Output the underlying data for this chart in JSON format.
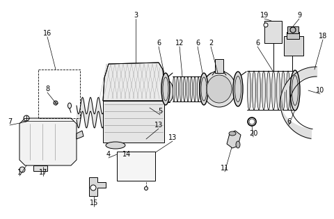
{
  "bg_color": "#ffffff",
  "line_color": "#000000",
  "line_width": 0.7,
  "font_size": 7.0,
  "fig_w": 4.8,
  "fig_h": 3.15,
  "dpi": 100
}
